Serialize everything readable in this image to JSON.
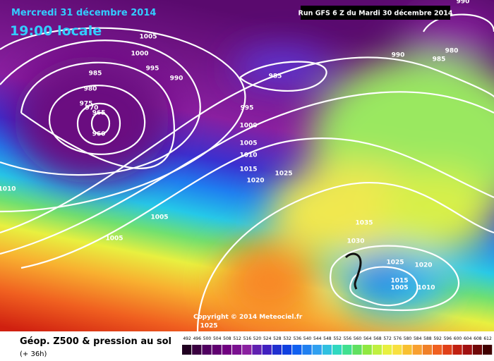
{
  "header": {
    "date": "Mercredi 31 décembre 2014",
    "time": "19:00 locale",
    "run": "Run GFS 6 Z du Mardi 30 décembre 2014"
  },
  "copyright": "Copyright © 2014 Meteociel.fr",
  "footer": {
    "title": "Géop. Z500 & pression au sol",
    "subtitle": "(+ 36h)"
  },
  "legend": {
    "values": [
      492,
      496,
      500,
      504,
      508,
      512,
      516,
      520,
      524,
      528,
      532,
      536,
      540,
      544,
      548,
      552,
      556,
      560,
      564,
      568,
      572,
      576,
      580,
      584,
      588,
      592,
      596,
      600,
      604,
      608,
      612
    ]
  },
  "isobar_labels": [
    "1005",
    "1000",
    "995",
    "990",
    "985",
    "980",
    "975",
    "970",
    "965",
    "960",
    "990",
    "985",
    "980",
    "985",
    "995",
    "1000",
    "1005",
    "1010",
    "1015",
    "1020",
    "1025",
    "1005",
    "1005",
    "1010",
    "1035",
    "1030",
    "1025",
    "1020",
    "1015",
    "1005",
    "1010",
    "1025",
    "990"
  ]
}
